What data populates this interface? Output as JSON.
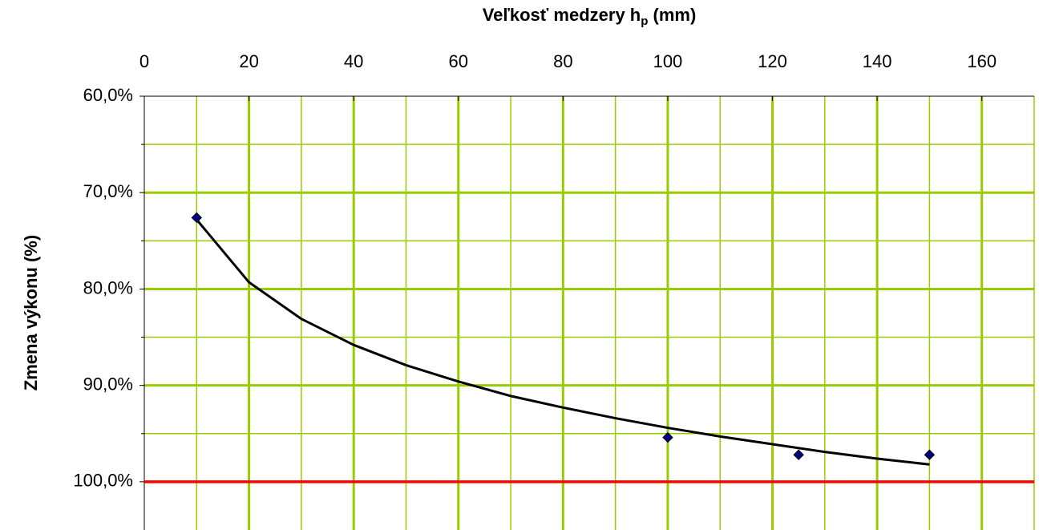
{
  "chart_data": {
    "type": "scatter",
    "xlabel": {
      "text": "Veľkosť medzery h",
      "sub": "p",
      "after": " (mm)"
    },
    "ylabel": "Zmena výkonu (%)",
    "x": [
      10,
      100,
      125,
      150
    ],
    "values": [
      72.6,
      95.4,
      97.2,
      97.2
    ],
    "color": "#000080",
    "trendline": {
      "x": [
        10,
        20,
        30,
        40,
        50,
        60,
        70,
        80,
        90,
        100,
        110,
        120,
        130,
        140,
        150
      ],
      "values": [
        72.8,
        79.3,
        83.1,
        85.8,
        87.9,
        89.6,
        91.1,
        92.3,
        93.4,
        94.4,
        95.3,
        96.1,
        96.9,
        97.6,
        98.2
      ],
      "color": "#000000"
    },
    "reference_line": {
      "value": 100,
      "color": "#ff0000"
    },
    "xlim": [
      0,
      170
    ],
    "xticks": [
      0,
      20,
      40,
      60,
      80,
      100,
      120,
      140,
      160
    ],
    "xminor": [
      10,
      30,
      50,
      70,
      90,
      110,
      130,
      150,
      170
    ],
    "ylim": [
      60,
      105
    ],
    "y_inverted": true,
    "yticks": [
      {
        "value": 60,
        "label": "60,0%"
      },
      {
        "value": 70,
        "label": "70,0%"
      },
      {
        "value": 80,
        "label": "80,0%"
      },
      {
        "value": 90,
        "label": "90,0%"
      },
      {
        "value": 100,
        "label": "100,0%"
      }
    ],
    "yminor": [
      65,
      75,
      85,
      95
    ],
    "grid": true,
    "grid_color": "#99cc00"
  }
}
